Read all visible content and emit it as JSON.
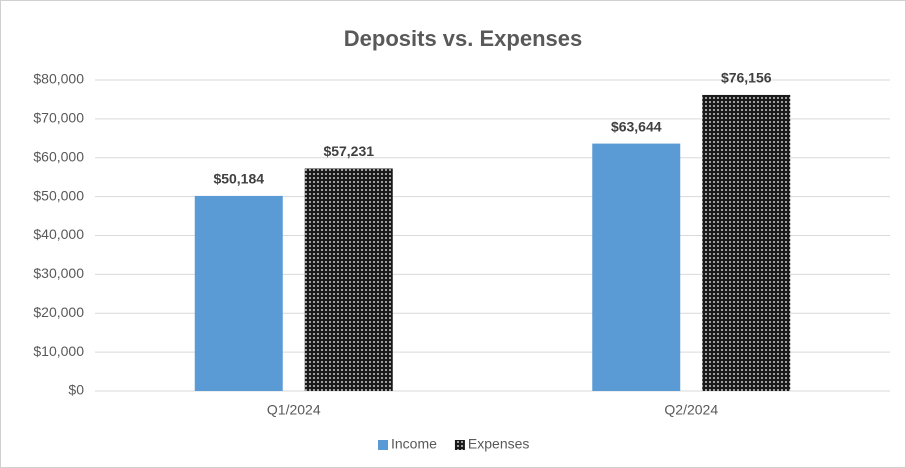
{
  "chart_data": {
    "type": "bar",
    "title": "Deposits vs. Expenses",
    "categories": [
      "Q1/2024",
      "Q2/2024"
    ],
    "series": [
      {
        "name": "Income",
        "color": "#5b9bd5",
        "values": [
          50184,
          63644
        ],
        "value_labels": [
          "$50,184",
          "$63,644"
        ]
      },
      {
        "name": "Expenses",
        "color": "#1a1a1a",
        "pattern": "dots",
        "values": [
          57231,
          76156
        ],
        "value_labels": [
          "$57,231",
          "$76,156"
        ]
      }
    ],
    "ylim": [
      0,
      80000
    ],
    "yticks": [
      {
        "value": 0,
        "label": "$0"
      },
      {
        "value": 10000,
        "label": "$10,000"
      },
      {
        "value": 20000,
        "label": "$20,000"
      },
      {
        "value": 30000,
        "label": "$30,000"
      },
      {
        "value": 40000,
        "label": "$40,000"
      },
      {
        "value": 50000,
        "label": "$50,000"
      },
      {
        "value": 60000,
        "label": "$60,000"
      },
      {
        "value": 70000,
        "label": "$70,000"
      },
      {
        "value": 80000,
        "label": "$80,000"
      }
    ],
    "grid": true,
    "legend": "bottom"
  }
}
